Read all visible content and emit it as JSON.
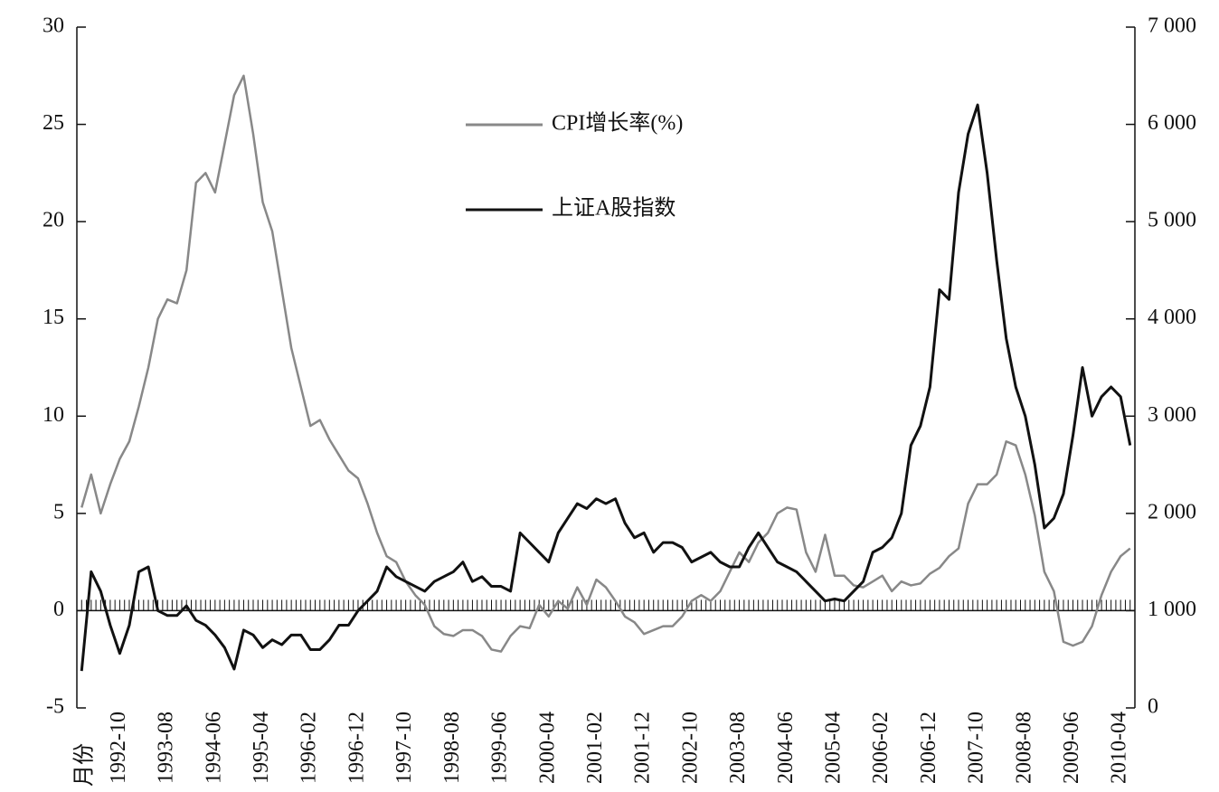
{
  "chart_data": {
    "type": "line",
    "x_label": "月份",
    "categories": [
      null,
      null,
      null,
      null,
      "1992-10",
      null,
      null,
      null,
      null,
      "1993-08",
      null,
      null,
      null,
      null,
      "1994-06",
      null,
      null,
      null,
      null,
      "1995-04",
      null,
      null,
      null,
      null,
      "1996-02",
      null,
      null,
      null,
      null,
      "1996-12",
      null,
      null,
      null,
      null,
      "1997-10",
      null,
      null,
      null,
      null,
      "1998-08",
      null,
      null,
      null,
      null,
      "1999-06",
      null,
      null,
      null,
      null,
      "2000-04",
      null,
      null,
      null,
      null,
      "2001-02",
      null,
      null,
      null,
      null,
      "2001-12",
      null,
      null,
      null,
      null,
      "2002-10",
      null,
      null,
      null,
      null,
      "2003-08",
      null,
      null,
      null,
      null,
      "2004-06",
      null,
      null,
      null,
      null,
      "2005-04",
      null,
      null,
      null,
      null,
      "2006-02",
      null,
      null,
      null,
      null,
      "2006-12",
      null,
      null,
      null,
      null,
      "2007-10",
      null,
      null,
      null,
      null,
      "2008-08",
      null,
      null,
      null,
      null,
      "2009-06",
      null,
      null,
      null,
      null,
      "2010-04",
      null
    ],
    "series": [
      {
        "name": "CPI增长率(%)",
        "color": "#888888",
        "values": [
          5.3,
          7.0,
          5.0,
          6.5,
          7.8,
          8.7,
          10.5,
          12.5,
          15.0,
          16.0,
          15.8,
          17.5,
          22.0,
          22.5,
          21.5,
          24.0,
          26.5,
          27.5,
          24.5,
          21.0,
          19.5,
          16.5,
          13.5,
          11.5,
          9.5,
          9.8,
          8.8,
          8.0,
          7.2,
          6.8,
          5.5,
          4.0,
          2.8,
          2.5,
          1.5,
          0.8,
          0.3,
          -0.8,
          -1.2,
          -1.3,
          -1.0,
          -1.0,
          -1.3,
          -2.0,
          -2.1,
          -1.3,
          -0.8,
          -0.9,
          0.3,
          -0.3,
          0.5,
          0.1,
          1.2,
          0.3,
          1.6,
          1.2,
          0.5,
          -0.3,
          -0.6,
          -1.2,
          -1.0,
          -0.8,
          -0.8,
          -0.3,
          0.5,
          0.8,
          0.5,
          1.0,
          2.0,
          3.0,
          2.5,
          3.5,
          4.0,
          5.0,
          5.3,
          5.2,
          3.0,
          2.0,
          3.9,
          1.8,
          1.8,
          1.3,
          1.2,
          1.5,
          1.8,
          1.0,
          1.5,
          1.3,
          1.4,
          1.9,
          2.2,
          2.8,
          3.2,
          5.5,
          6.5,
          6.5,
          7.0,
          8.7,
          8.5,
          7.0,
          4.9,
          2.0,
          1.0,
          -1.6,
          -1.8,
          -1.6,
          -0.8,
          0.8,
          2.0,
          2.8,
          3.2
        ]
      },
      {
        "name": "上证A股指数",
        "color": "#111111",
        "axis": "y2",
        "values": [
          380,
          1400,
          1200,
          850,
          560,
          850,
          1400,
          1450,
          1000,
          950,
          950,
          1050,
          900,
          850,
          750,
          620,
          400,
          800,
          750,
          620,
          700,
          650,
          750,
          750,
          600,
          600,
          700,
          850,
          850,
          1000,
          1100,
          1200,
          1450,
          1350,
          1300,
          1250,
          1200,
          1300,
          1350,
          1400,
          1500,
          1300,
          1350,
          1250,
          1250,
          1200,
          1800,
          1700,
          1600,
          1500,
          1800,
          1950,
          2100,
          2050,
          2150,
          2100,
          2150,
          1900,
          1750,
          1800,
          1600,
          1700,
          1700,
          1650,
          1500,
          1550,
          1600,
          1500,
          1450,
          1450,
          1650,
          1800,
          1650,
          1500,
          1450,
          1400,
          1300,
          1200,
          1100,
          1120,
          1100,
          1200,
          1300,
          1600,
          1650,
          1750,
          2000,
          2700,
          2900,
          3300,
          4300,
          4200,
          5300,
          5900,
          6200,
          5500,
          4600,
          3800,
          3300,
          3000,
          2500,
          1850,
          1950,
          2200,
          2800,
          3500,
          3000,
          3200,
          3300,
          3200,
          2700
        ]
      }
    ],
    "ylim": [
      -5,
      30
    ],
    "yticks": [
      -5,
      0,
      5,
      10,
      15,
      20,
      25,
      30
    ],
    "y2lim": [
      0,
      7000
    ],
    "y2ticks": [
      0,
      {
        "value": 1000,
        "label": "1 000"
      },
      {
        "value": 2000,
        "label": "2 000"
      },
      {
        "value": 3000,
        "label": "3 000"
      },
      {
        "value": 4000,
        "label": "4 000"
      },
      {
        "value": 5000,
        "label": "5 000"
      },
      {
        "value": 6000,
        "label": "6 000"
      },
      {
        "value": 7000,
        "label": "7 000"
      }
    ],
    "legend": "upper-center"
  }
}
